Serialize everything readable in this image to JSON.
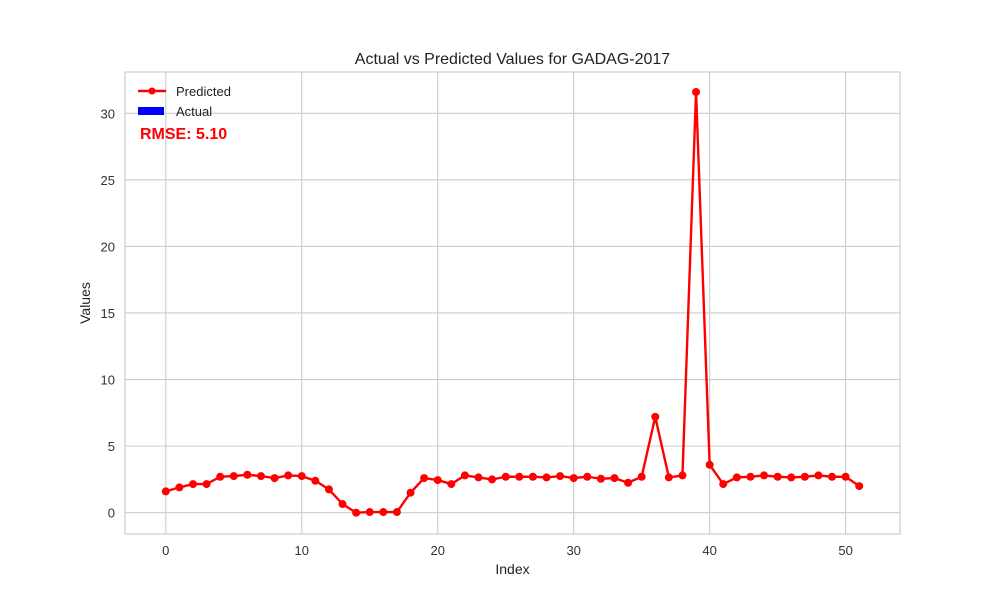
{
  "chart_data": {
    "type": "line",
    "title": "Actual vs Predicted Values for GADAG-2017",
    "xlabel": "Index",
    "ylabel": "Values",
    "xlim": [
      -3,
      54
    ],
    "ylim": [
      -1.6,
      33.1
    ],
    "xticks": [
      0,
      10,
      20,
      30,
      40,
      50
    ],
    "yticks": [
      0,
      5,
      10,
      15,
      20,
      25,
      30
    ],
    "grid": true,
    "legend_position": "top-left",
    "annotation": "RMSE: 5.10",
    "colors": {
      "predicted": "#ff0000",
      "actual": "#0000ff"
    },
    "series": [
      {
        "name": "Predicted",
        "style": "line-with-markers",
        "x": [
          0,
          1,
          2,
          3,
          4,
          5,
          6,
          7,
          8,
          9,
          10,
          11,
          12,
          13,
          14,
          15,
          16,
          17,
          18,
          19,
          20,
          21,
          22,
          23,
          24,
          25,
          26,
          27,
          28,
          29,
          30,
          31,
          32,
          33,
          34,
          35,
          36,
          37,
          38,
          39,
          40,
          41,
          42,
          43,
          44,
          45,
          46,
          47,
          48,
          49,
          50,
          51
        ],
        "values": [
          1.6,
          1.9,
          2.15,
          2.15,
          2.7,
          2.75,
          2.85,
          2.75,
          2.6,
          2.8,
          2.75,
          2.4,
          1.75,
          0.65,
          0.0,
          0.05,
          0.05,
          0.05,
          1.5,
          2.6,
          2.45,
          2.15,
          2.8,
          2.65,
          2.5,
          2.7,
          2.7,
          2.7,
          2.65,
          2.75,
          2.6,
          2.7,
          2.55,
          2.6,
          2.25,
          2.7,
          7.2,
          2.65,
          2.8,
          31.6,
          3.6,
          2.15,
          2.65,
          2.7,
          2.8,
          2.7,
          2.65,
          2.7,
          2.8,
          2.7,
          2.7,
          2.0
        ]
      },
      {
        "name": "Actual",
        "style": "bar",
        "values": []
      }
    ]
  }
}
